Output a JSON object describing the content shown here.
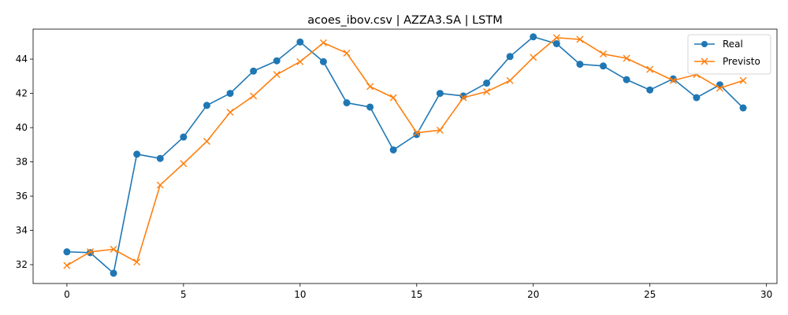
{
  "chart_data": {
    "type": "line",
    "title": "acoes_ibov.csv | AZZA3.SA | LSTM",
    "xlabel": "",
    "ylabel": "",
    "xlim": [
      -1.45,
      30.45
    ],
    "ylim": [
      30.9,
      45.75
    ],
    "x_ticks": [
      0,
      5,
      10,
      15,
      20,
      25,
      30
    ],
    "y_ticks": [
      32,
      34,
      36,
      38,
      40,
      42,
      44
    ],
    "grid": false,
    "legend_position": "top-right",
    "x": [
      0,
      1,
      2,
      3,
      4,
      5,
      6,
      7,
      8,
      9,
      10,
      11,
      12,
      13,
      14,
      15,
      16,
      17,
      18,
      19,
      20,
      21,
      22,
      23,
      24,
      25,
      26,
      27,
      28,
      29
    ],
    "series": [
      {
        "name": "Real",
        "color": "#1f77b4",
        "marker": "circle",
        "values": [
          32.75,
          32.7,
          31.5,
          38.45,
          38.2,
          39.45,
          41.3,
          42.0,
          43.3,
          43.9,
          45.0,
          43.85,
          41.45,
          41.2,
          38.7,
          39.6,
          42.0,
          41.85,
          42.6,
          44.15,
          45.3,
          44.9,
          43.7,
          43.6,
          42.8,
          42.2,
          42.85,
          41.75,
          42.5,
          41.15
        ]
      },
      {
        "name": "Previsto",
        "color": "#ff7f0e",
        "marker": "x",
        "values": [
          31.95,
          32.75,
          32.9,
          32.15,
          36.65,
          37.9,
          39.2,
          40.9,
          41.85,
          43.1,
          43.85,
          44.95,
          44.35,
          42.4,
          41.75,
          39.7,
          39.85,
          41.75,
          42.1,
          42.75,
          44.1,
          45.25,
          45.15,
          44.3,
          44.05,
          43.4,
          42.75,
          43.1,
          42.3,
          42.75
        ]
      }
    ]
  }
}
